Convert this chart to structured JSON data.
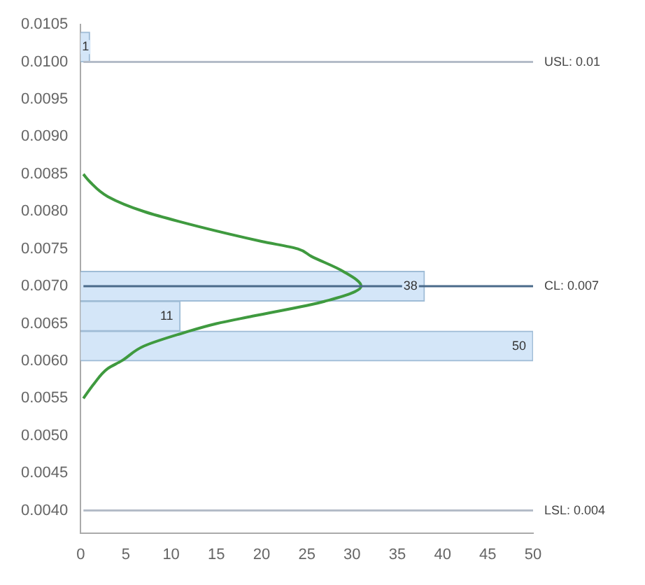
{
  "chart_data": {
    "type": "histogram",
    "orientation": "horizontal",
    "bins": [
      0.006,
      0.0064,
      0.0068,
      0.0072,
      0.0076,
      0.008,
      0.0084,
      0.0088,
      0.0092,
      0.0096,
      0.01,
      0.0104
    ],
    "series": [
      {
        "color": "#d4e6f8",
        "values": [
          50,
          11,
          38,
          0,
          0,
          0,
          0,
          0,
          0,
          0,
          1
        ],
        "value_labels": [
          "50",
          "11",
          "38",
          null,
          null,
          null,
          null,
          null,
          null,
          null,
          "1"
        ]
      },
      {
        "type": "line",
        "color": "#3f9a3f",
        "x": [
          0.0055,
          0.0057,
          0.0059,
          0.006,
          0.0062,
          0.0064,
          0.0065,
          0.0066,
          0.0068,
          0.007,
          0.0072,
          0.0074,
          0.0075,
          0.0076,
          0.0078,
          0.008,
          0.0082,
          0.0084,
          0.0085
        ],
        "values": [
          0.3,
          1.5,
          3,
          4.5,
          7,
          12,
          15,
          19,
          27,
          31,
          29,
          25.5,
          24,
          20,
          13,
          7,
          3,
          1,
          0.3
        ]
      }
    ],
    "xlim": [
      0,
      50
    ],
    "xticks": [
      0,
      5,
      10,
      15,
      20,
      25,
      30,
      35,
      40,
      45,
      50
    ],
    "ylim": [
      0.0037,
      0.0105
    ],
    "yticks": [
      {
        "value": 0.004,
        "label": "0.0040"
      },
      {
        "value": 0.0045,
        "label": "0.0045"
      },
      {
        "value": 0.005,
        "label": "0.0050"
      },
      {
        "value": 0.0055,
        "label": "0.0055"
      },
      {
        "value": 0.006,
        "label": "0.0060"
      },
      {
        "value": 0.0065,
        "label": "0.0065"
      },
      {
        "value": 0.007,
        "label": "0.0070"
      },
      {
        "value": 0.0075,
        "label": "0.0075"
      },
      {
        "value": 0.008,
        "label": "0.0080"
      },
      {
        "value": 0.0085,
        "label": "0.0085"
      },
      {
        "value": 0.009,
        "label": "0.0090"
      },
      {
        "value": 0.0095,
        "label": "0.0095"
      },
      {
        "value": 0.01,
        "label": "0.0100"
      },
      {
        "value": 0.0105,
        "label": "0.0105"
      }
    ],
    "ref_lines": [
      {
        "axis": "y",
        "value": 0.01,
        "label": "USL: 0.01",
        "color": "#b4bcc8"
      },
      {
        "axis": "y",
        "value": 0.007,
        "label": "CL: 0.007",
        "color": "#4a6a8a"
      },
      {
        "axis": "y",
        "value": 0.004,
        "label": "LSL: 0.004",
        "color": "#b4bcc8"
      }
    ],
    "marker": "none",
    "grid": false,
    "legend": false
  }
}
